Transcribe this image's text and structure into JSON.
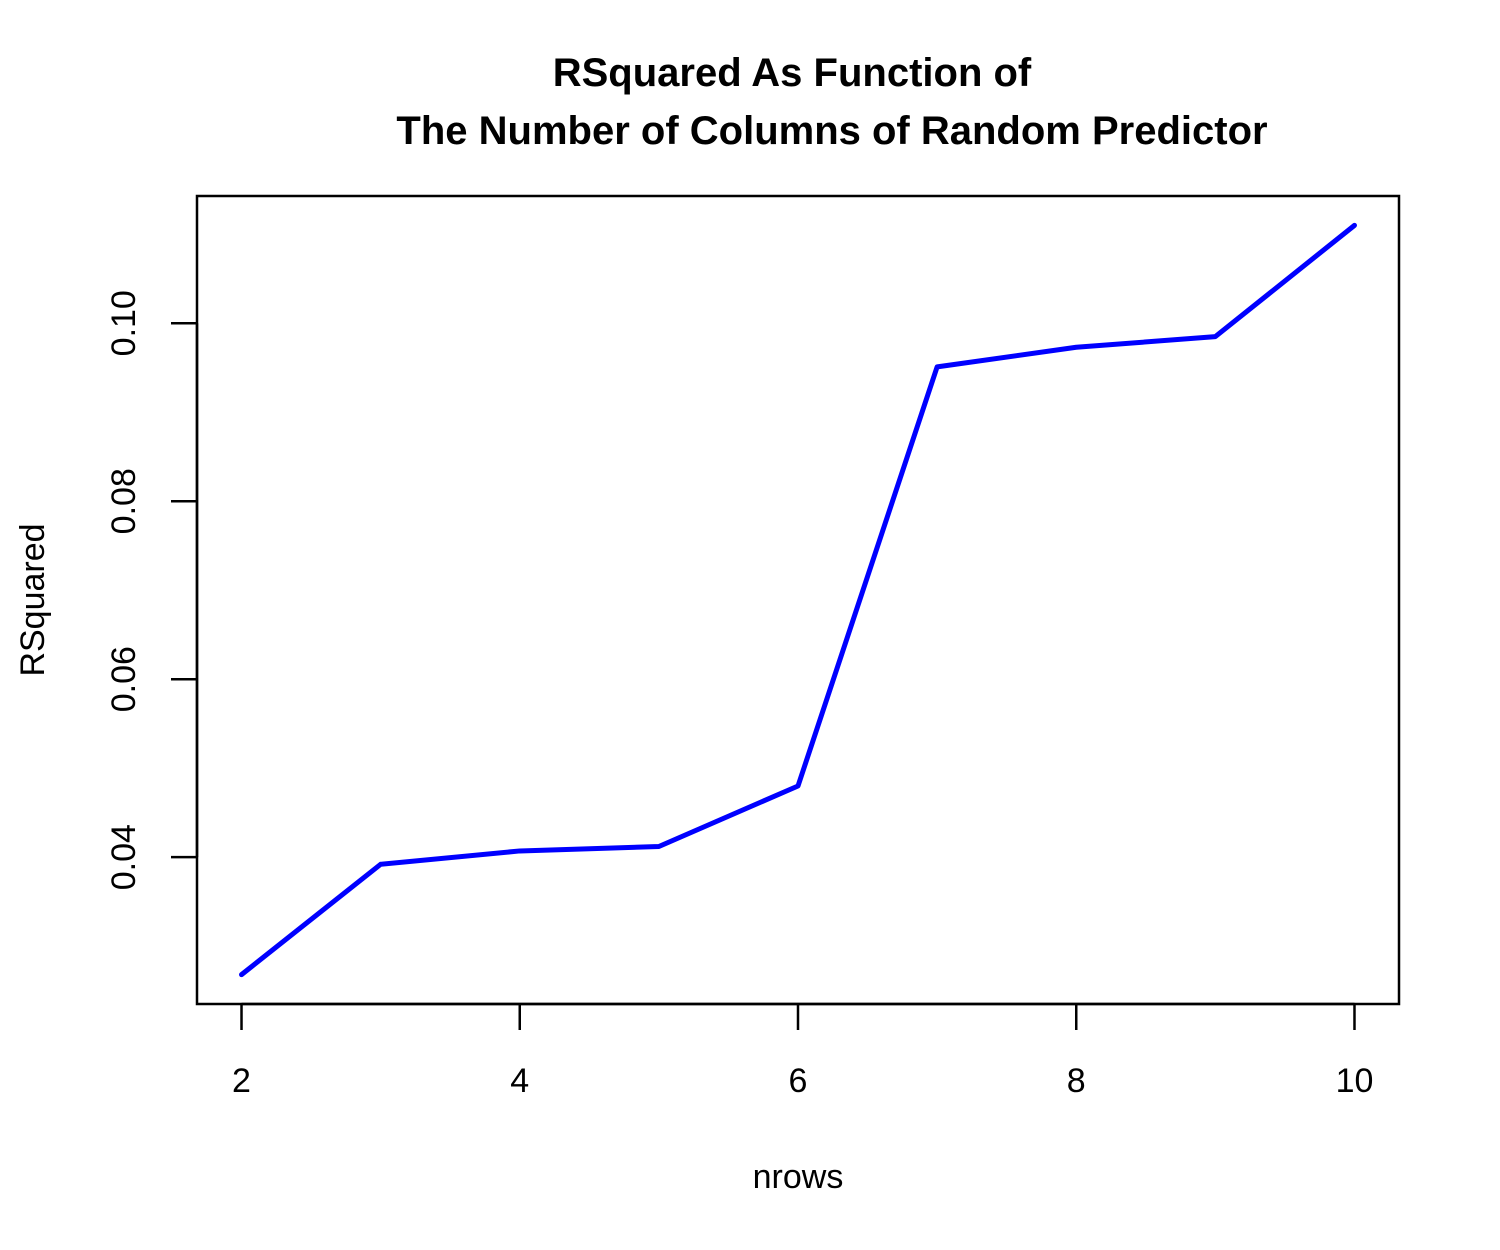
{
  "chart_data": {
    "type": "line",
    "title": [
      "RSquared As Function of",
      "The Number of Columns of Random Predictor"
    ],
    "xlabel": "nrows",
    "ylabel": "RSquared",
    "x": [
      2,
      3,
      4,
      5,
      6,
      7,
      8,
      9,
      10
    ],
    "series": [
      {
        "values": [
          0.0268,
          0.0392,
          0.0407,
          0.0412,
          0.048,
          0.0951,
          0.0973,
          0.0985,
          0.111
        ],
        "color": "#0000ff"
      }
    ],
    "xlim": [
      1.68,
      10.32
    ],
    "ylim": [
      0.0235,
      0.1143
    ],
    "xticks": [
      2,
      4,
      6,
      8,
      10
    ],
    "xtick_labels": [
      "2",
      "4",
      "6",
      "8",
      "10"
    ],
    "yticks": [
      0.04,
      0.06,
      0.08,
      0.1
    ],
    "ytick_labels": [
      "0.04",
      "0.06",
      "0.08",
      "0.10"
    ],
    "grid": false,
    "legend": "none"
  }
}
